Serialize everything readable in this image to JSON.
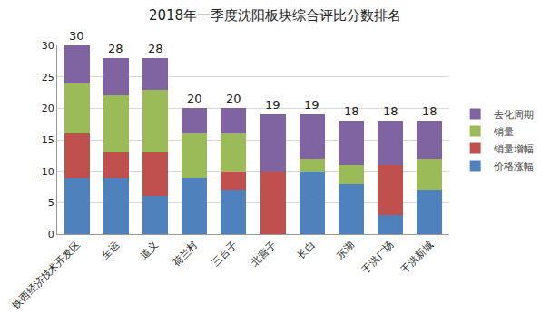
{
  "chart_data": {
    "type": "bar",
    "title": "2018年一季度沈阳板块综合评比分数排名",
    "categories": [
      "铁西经济技术开发区",
      "全运",
      "道义",
      "荷兰村",
      "三台子",
      "北营子",
      "长白",
      "东湖",
      "于洪广场",
      "于洪新城"
    ],
    "series": [
      {
        "name": "价格涨幅",
        "color": "#4f81bd",
        "values": [
          9,
          9,
          6,
          9,
          7,
          0,
          10,
          8,
          3,
          7
        ]
      },
      {
        "name": "销量增幅",
        "color": "#c0504d",
        "values": [
          7,
          4,
          7,
          0,
          3,
          10,
          0,
          0,
          8,
          0
        ]
      },
      {
        "name": "销量",
        "color": "#9bbb59",
        "values": [
          8,
          9,
          10,
          7,
          6,
          0,
          2,
          3,
          0,
          5
        ]
      },
      {
        "name": "去化周期",
        "color": "#8064a2",
        "values": [
          6,
          6,
          5,
          4,
          4,
          9,
          7,
          7,
          7,
          6
        ]
      }
    ],
    "totals": [
      30,
      28,
      28,
      20,
      20,
      19,
      19,
      18,
      18,
      18
    ],
    "stacked": true,
    "ylim": [
      0,
      30
    ],
    "yticks": [
      0,
      5,
      10,
      15,
      20,
      25,
      30
    ],
    "grid": true,
    "legend": "right"
  }
}
